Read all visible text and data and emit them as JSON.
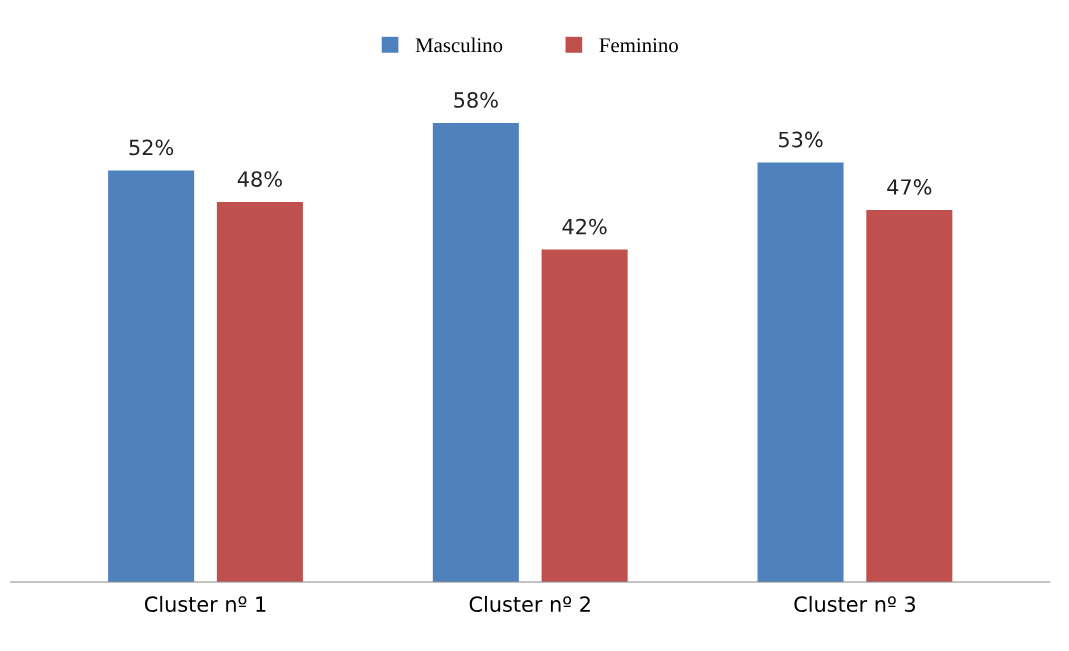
{
  "chart_data": {
    "type": "bar",
    "categories": [
      "Cluster nº 1",
      "Cluster nº 2",
      "Cluster nº 3"
    ],
    "series": [
      {
        "name": "Masculino",
        "color": "#4f81bd",
        "values": [
          52,
          58,
          53
        ],
        "value_labels": [
          "52%",
          "58%",
          "53%"
        ]
      },
      {
        "name": "Feminino",
        "color": "#c0504d",
        "values": [
          48,
          42,
          47
        ],
        "value_labels": [
          "48%",
          "42%",
          "47%"
        ]
      }
    ],
    "legend": "top",
    "grid": false
  }
}
